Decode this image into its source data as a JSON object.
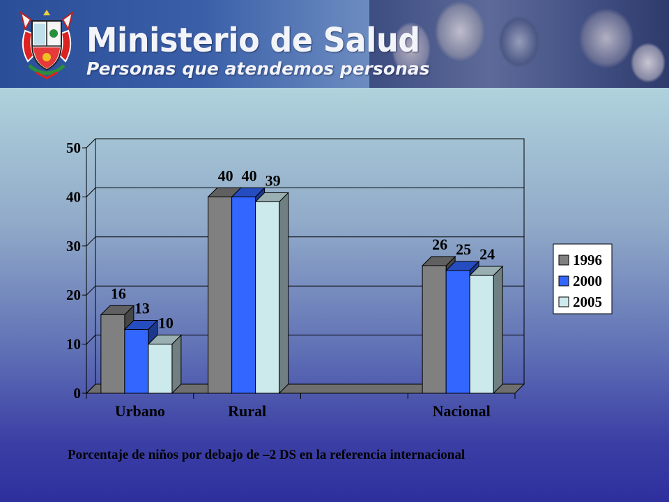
{
  "banner": {
    "title": "Ministerio de Salud",
    "subtitle": "Personas que atendemos personas"
  },
  "caption": "Porcentaje de niños por debajo de –2 DS en la referencia internacional",
  "colors": {
    "series_1996": "#808080",
    "series_2000": "#3366ff",
    "series_2005": "#cce9ec"
  },
  "chart_data": {
    "type": "bar",
    "title": "",
    "xlabel": "",
    "ylabel": "",
    "ylim": [
      0,
      50
    ],
    "yticks": [
      "0",
      "10",
      "20",
      "30",
      "40",
      "50"
    ],
    "categories": [
      "Urbano",
      "Rural",
      "",
      "Nacional"
    ],
    "series": [
      {
        "name": "1996",
        "values": [
          16,
          40,
          null,
          26
        ],
        "labels": [
          "16",
          "40",
          "",
          "26"
        ]
      },
      {
        "name": "2000",
        "values": [
          13,
          40,
          null,
          25
        ],
        "labels": [
          "13",
          "40",
          "",
          "25"
        ]
      },
      {
        "name": "2005",
        "values": [
          10,
          39,
          null,
          24
        ],
        "labels": [
          "10",
          "39",
          "",
          "24"
        ]
      }
    ],
    "legend_position": "right",
    "grid": true
  }
}
